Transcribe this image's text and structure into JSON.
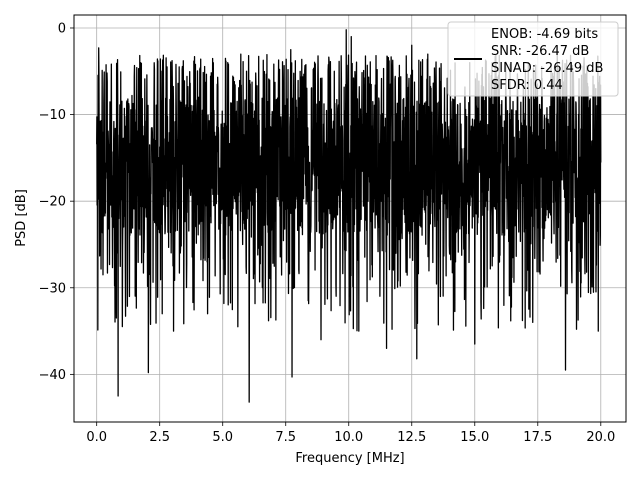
{
  "chart_data": {
    "type": "line",
    "title": "",
    "xlabel": "Frequency [MHz]",
    "ylabel": "PSD [dB]",
    "xlim": [
      -0.9,
      21.0
    ],
    "ylim": [
      -45.5,
      1.5
    ],
    "xticks": [
      0.0,
      2.5,
      5.0,
      7.5,
      10.0,
      12.5,
      15.0,
      17.5,
      20.0
    ],
    "xtick_labels": [
      "0.0",
      "2.5",
      "5.0",
      "7.5",
      "10.0",
      "12.5",
      "15.0",
      "17.5",
      "20.0"
    ],
    "yticks": [
      0,
      -10,
      -20,
      -30,
      -40
    ],
    "ytick_labels": [
      "0",
      "−10",
      "−20",
      "−30",
      "−40"
    ],
    "grid": true,
    "legend_position": "top-right",
    "series": [
      {
        "name": "",
        "color": "#000000",
        "x_range": [
          0.0,
          20.0
        ],
        "typical_band_db": [
          -24,
          -8
        ],
        "peaks": [
          {
            "x": 0.08,
            "y": -2.3
          },
          {
            "x": 1.4,
            "y": -7.8
          },
          {
            "x": 3.0,
            "y": -6.0
          },
          {
            "x": 5.2,
            "y": -4.0
          },
          {
            "x": 7.7,
            "y": -2.5
          },
          {
            "x": 9.9,
            "y": -0.2
          },
          {
            "x": 10.1,
            "y": -1.0
          },
          {
            "x": 12.5,
            "y": -2.0
          },
          {
            "x": 14.8,
            "y": -4.0
          },
          {
            "x": 17.4,
            "y": -5.0
          },
          {
            "x": 19.8,
            "y": -7.0
          }
        ],
        "dips": [
          {
            "x": 0.25,
            "y": -28.5
          },
          {
            "x": 0.85,
            "y": -42.5
          },
          {
            "x": 1.3,
            "y": -31.0
          },
          {
            "x": 1.55,
            "y": -30.0
          },
          {
            "x": 2.05,
            "y": -39.8
          },
          {
            "x": 2.6,
            "y": -33.0
          },
          {
            "x": 3.05,
            "y": -35.0
          },
          {
            "x": 4.4,
            "y": -33.0
          },
          {
            "x": 5.6,
            "y": -34.5
          },
          {
            "x": 6.05,
            "y": -43.2
          },
          {
            "x": 7.75,
            "y": -40.3
          },
          {
            "x": 8.9,
            "y": -36.0
          },
          {
            "x": 10.4,
            "y": -35.0
          },
          {
            "x": 11.5,
            "y": -37.0
          },
          {
            "x": 12.7,
            "y": -38.2
          },
          {
            "x": 15.0,
            "y": -36.5
          },
          {
            "x": 17.3,
            "y": -34.0
          },
          {
            "x": 18.6,
            "y": -39.5
          },
          {
            "x": 19.9,
            "y": -35.0
          }
        ]
      }
    ],
    "legend_lines": [
      "ENOB: -4.69 bits",
      "SNR: -26.47 dB",
      "SINAD: -26.49 dB",
      "SFDR: 0.44"
    ]
  }
}
